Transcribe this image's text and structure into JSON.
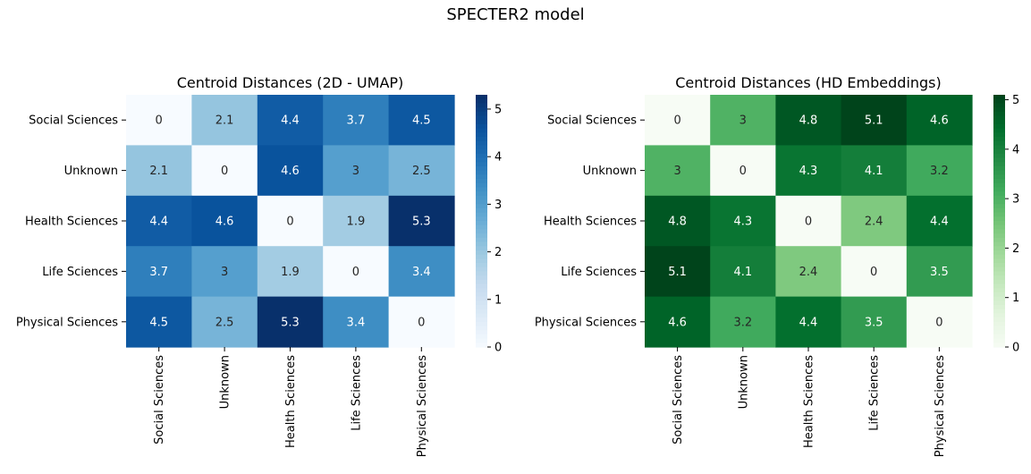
{
  "figure": {
    "suptitle": "SPECTER2 model"
  },
  "chart_data": [
    {
      "type": "heatmap",
      "title": "Centroid Distances (2D - UMAP)",
      "xlabel": "",
      "ylabel": "",
      "rows": [
        "Social Sciences",
        "Unknown",
        "Health Sciences",
        "Life Sciences",
        "Physical Sciences"
      ],
      "cols": [
        "Social Sciences",
        "Unknown",
        "Health Sciences",
        "Life Sciences",
        "Physical Sciences"
      ],
      "values": [
        [
          0,
          2.1,
          4.4,
          3.7,
          4.5
        ],
        [
          2.1,
          0,
          4.6,
          3,
          2.5
        ],
        [
          4.4,
          4.6,
          0,
          1.9,
          5.3
        ],
        [
          3.7,
          3,
          1.9,
          0,
          3.4
        ],
        [
          4.5,
          2.5,
          5.3,
          3.4,
          0
        ]
      ],
      "colormap": "Blues",
      "color_range": [
        0,
        5.3
      ],
      "colorbar_ticks": [
        "0",
        "1",
        "2",
        "3",
        "4",
        "5"
      ],
      "colors": [
        "#f7fbff",
        "#deebf7",
        "#c6dbef",
        "#9ecae1",
        "#6baed6",
        "#4292c6",
        "#2171b5",
        "#08519c",
        "#08306b"
      ]
    },
    {
      "type": "heatmap",
      "title": "Centroid Distances (HD Embeddings)",
      "xlabel": "",
      "ylabel": "",
      "rows": [
        "Social Sciences",
        "Unknown",
        "Health Sciences",
        "Life Sciences",
        "Physical Sciences"
      ],
      "cols": [
        "Social Sciences",
        "Unknown",
        "Health Sciences",
        "Life Sciences",
        "Physical Sciences"
      ],
      "values": [
        [
          0,
          3,
          4.8,
          5.1,
          4.6
        ],
        [
          3,
          0,
          4.3,
          4.1,
          3.2
        ],
        [
          4.8,
          4.3,
          0,
          2.4,
          4.4
        ],
        [
          5.1,
          4.1,
          2.4,
          0,
          3.5
        ],
        [
          4.6,
          3.2,
          4.4,
          3.5,
          0
        ]
      ],
      "colormap": "Greens",
      "color_range": [
        0,
        5.1
      ],
      "colorbar_ticks": [
        "0",
        "1",
        "2",
        "3",
        "4",
        "5"
      ],
      "colors": [
        "#f7fcf5",
        "#e5f5e0",
        "#c7e9c0",
        "#a1d99b",
        "#74c476",
        "#41ab5d",
        "#238b45",
        "#006d2c",
        "#00441b"
      ]
    }
  ]
}
